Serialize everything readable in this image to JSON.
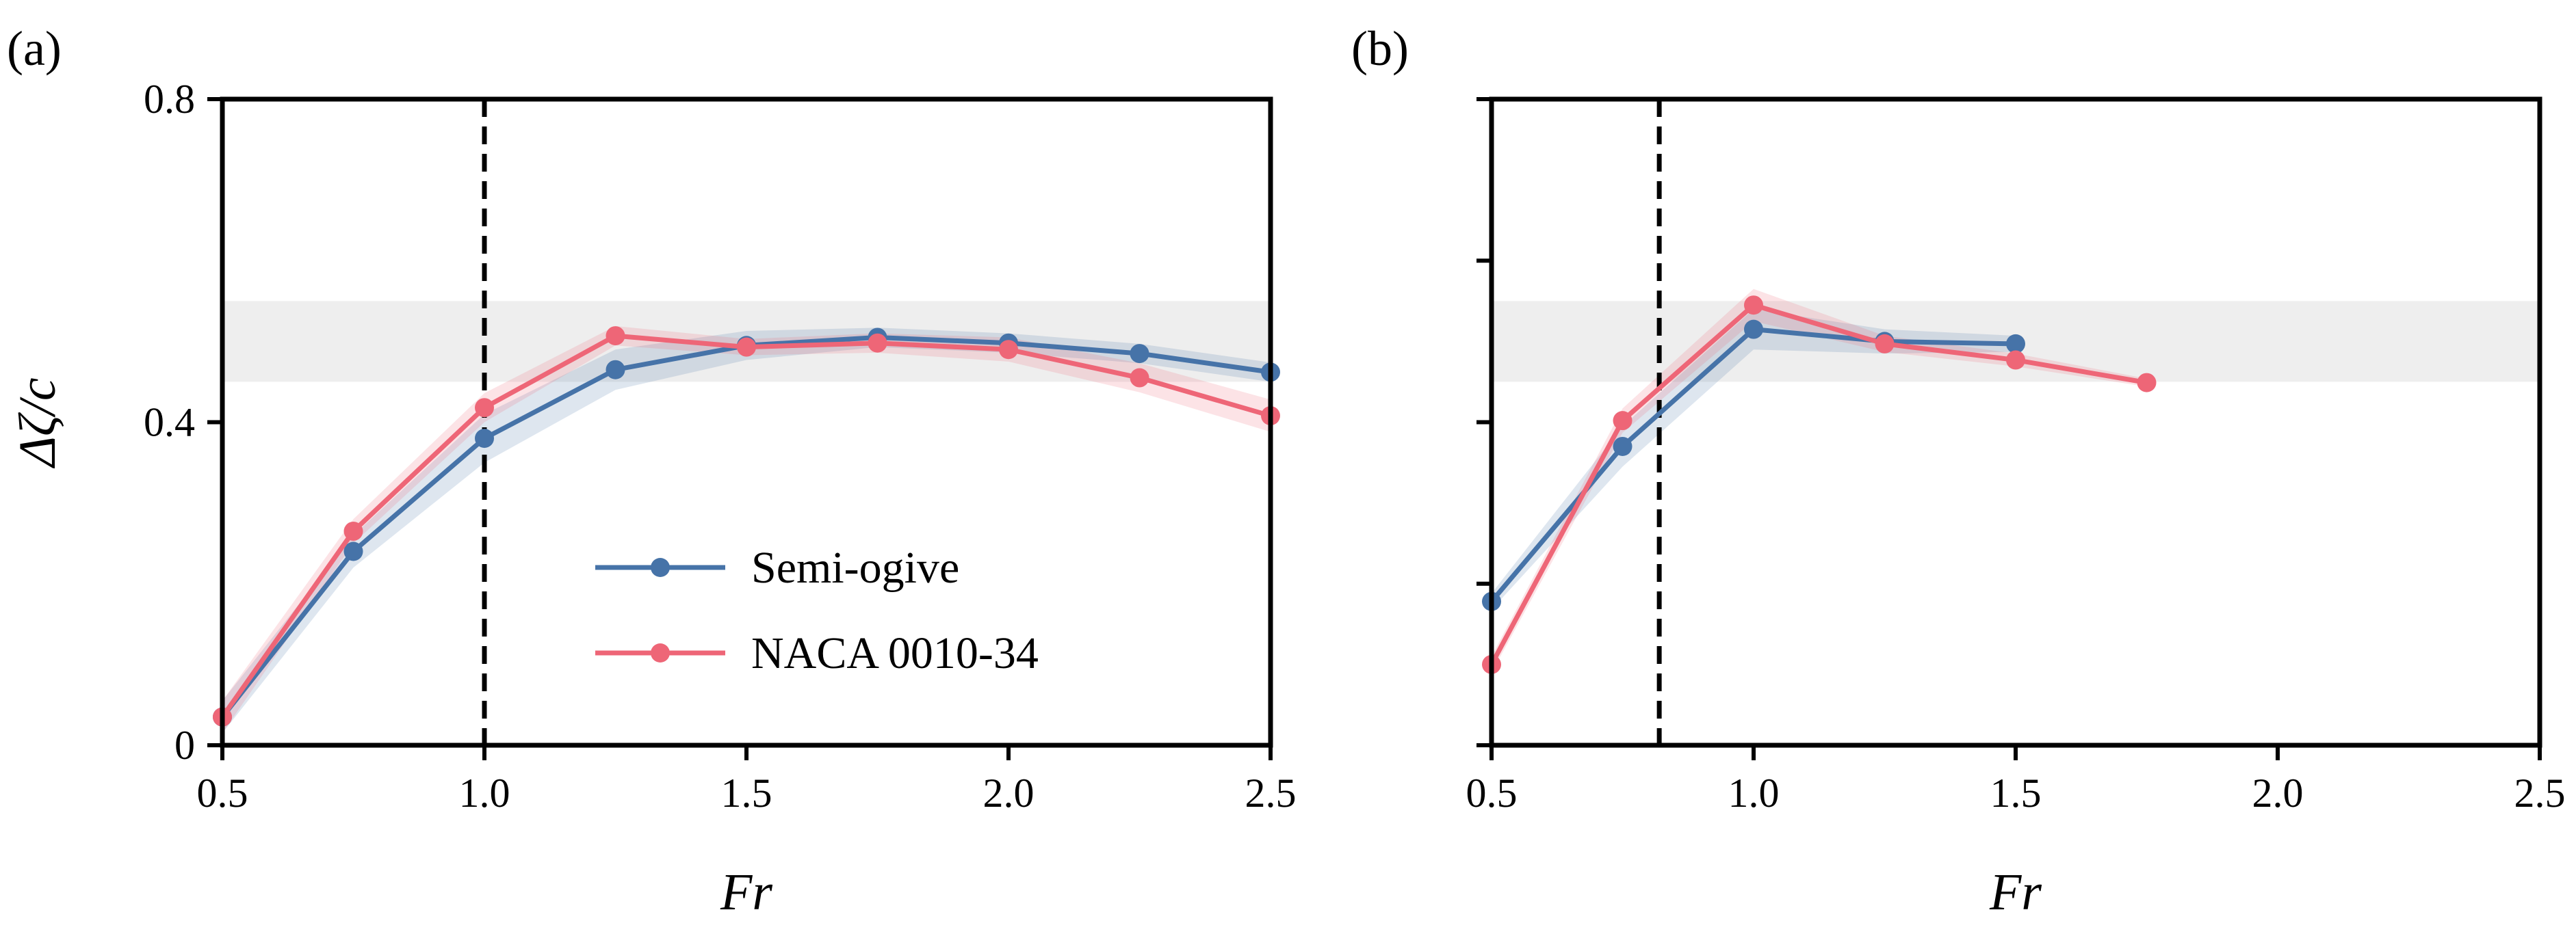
{
  "colors": {
    "semi_ogive": "#4673a8",
    "naca": "#ee6677",
    "reference_band": "#eeeeee",
    "axis": "#000000"
  },
  "legend": {
    "placement": "center",
    "entries": [
      "Semi-ogive",
      "NACA 0010-34"
    ]
  },
  "chart_data": [
    {
      "type": "line",
      "panel_label": "(a)",
      "xlabel": "Fr",
      "ylabel": "Δζ/c",
      "xlim": [
        0.5,
        2.5
      ],
      "ylim": [
        0,
        0.8
      ],
      "xticks": [
        "0.5",
        "1.0",
        "1.5",
        "2.0",
        "2.5"
      ],
      "yticks": [
        "0",
        "0.4",
        "0.8"
      ],
      "reference_band": [
        0.45,
        0.55
      ],
      "vline_x": 1.0,
      "grid": false,
      "series": [
        {
          "name": "Semi-ogive",
          "x": [
            0.5,
            0.75,
            1.0,
            1.25,
            1.5,
            1.75,
            2.0,
            2.25,
            2.5
          ],
          "y": [
            0.035,
            0.24,
            0.38,
            0.465,
            0.495,
            0.505,
            0.498,
            0.485,
            0.462
          ],
          "band": [
            0.02,
            0.02,
            0.03,
            0.025,
            0.018,
            0.012,
            0.012,
            0.012,
            0.012
          ]
        },
        {
          "name": "NACA 0010-34",
          "x": [
            0.5,
            0.75,
            1.0,
            1.25,
            1.5,
            1.75,
            2.0,
            2.25,
            2.5
          ],
          "y": [
            0.035,
            0.265,
            0.418,
            0.507,
            0.493,
            0.498,
            0.49,
            0.455,
            0.408
          ],
          "band": [
            0.02,
            0.015,
            0.018,
            0.012,
            0.01,
            0.012,
            0.015,
            0.018,
            0.02
          ]
        }
      ]
    },
    {
      "type": "line",
      "panel_label": "(b)",
      "xlabel": "Fr",
      "ylabel": "",
      "xlim": [
        0.5,
        2.5
      ],
      "ylim": [
        0,
        0.8
      ],
      "xticks": [
        "0.5",
        "1.0",
        "1.5",
        "2.0",
        "2.5"
      ],
      "yticks": [
        "",
        "",
        "",
        "",
        ""
      ],
      "reference_band": [
        0.45,
        0.55
      ],
      "vline_x": 0.82,
      "grid": false,
      "series": [
        {
          "name": "Semi-ogive",
          "x": [
            0.5,
            0.75,
            1.0,
            1.25,
            1.5
          ],
          "y": [
            0.178,
            0.37,
            0.515,
            0.5,
            0.497
          ],
          "band": [
            0.01,
            0.025,
            0.025,
            0.015,
            0.01
          ]
        },
        {
          "name": "NACA 0010-34",
          "x": [
            0.5,
            0.75,
            1.0,
            1.25,
            1.5,
            1.75
          ],
          "y": [
            0.1,
            0.402,
            0.545,
            0.497,
            0.477,
            0.449
          ],
          "band": [
            0.01,
            0.015,
            0.02,
            0.01,
            0.008,
            0.005
          ]
        }
      ]
    }
  ]
}
